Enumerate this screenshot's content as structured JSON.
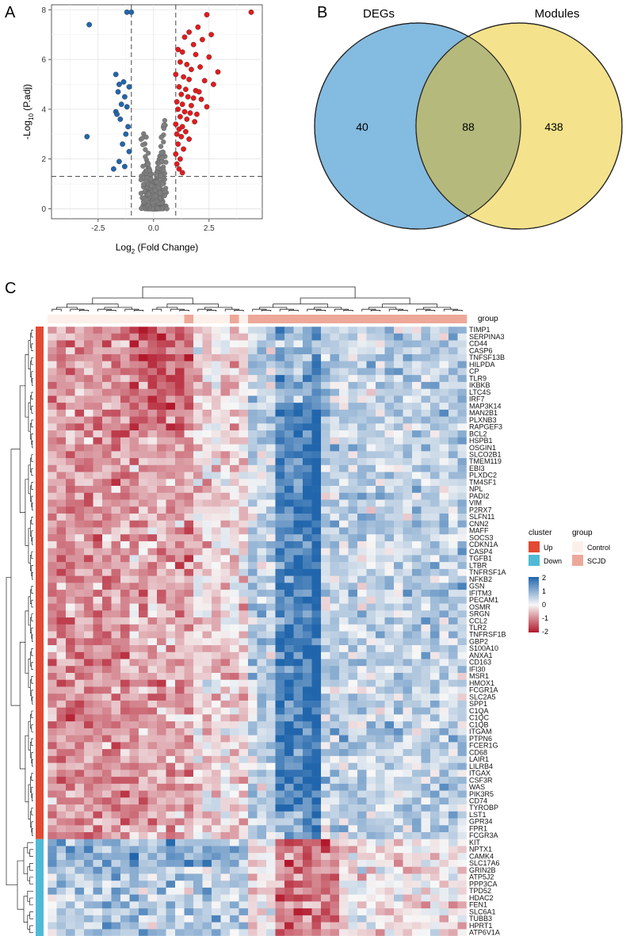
{
  "panel_labels": {
    "a": "A",
    "b": "B",
    "c": "C"
  },
  "chart_data": [
    {
      "type": "scatter",
      "title": "",
      "xlabel_main": "Log",
      "xlabel_sub": "2",
      "xlabel_rest": " (Fold Change)",
      "ylabel_main": "-Log",
      "ylabel_sub": "10",
      "ylabel_rest": " (P.adj)",
      "xlim": [
        -4.6,
        4.9
      ],
      "ylim": [
        -0.4,
        8.2
      ],
      "xticks": [
        -2.5,
        0.0,
        2.5
      ],
      "xtick_labels": [
        "-2.5",
        "0.0",
        "2.5"
      ],
      "yticks": [
        0,
        2,
        4,
        6,
        8
      ],
      "ytick_labels": [
        "0",
        "2",
        "4",
        "6",
        "8"
      ],
      "fc_cutoffs": [
        -1,
        1
      ],
      "p_cutoff": 1.3,
      "series": [
        {
          "name": "Down",
          "color": "#2166ac",
          "x": [
            -2.9,
            -1.2,
            -1.0,
            -3.0,
            -1.7,
            -1.35,
            -1.55,
            -1.1,
            -1.6,
            -1.3,
            -1.45,
            -1.2,
            -1.7,
            -1.5,
            -1.15,
            -1.65,
            -1.25,
            -1.4,
            -1.1,
            -1.55,
            -1.3,
            -1.8
          ],
          "y": [
            7.4,
            7.9,
            7.9,
            2.9,
            5.4,
            5.1,
            5.0,
            4.9,
            4.7,
            4.5,
            4.2,
            4.1,
            3.9,
            3.6,
            3.3,
            3.8,
            3.0,
            2.6,
            2.3,
            1.9,
            1.7,
            1.6
          ]
        },
        {
          "name": "Up",
          "color": "#e41a1c",
          "x": [
            4.4,
            2.4,
            2.0,
            1.6,
            2.6,
            1.4,
            2.2,
            1.8,
            1.1,
            1.3,
            1.9,
            2.5,
            1.2,
            1.5,
            2.1,
            1.7,
            2.9,
            1.0,
            1.35,
            1.6,
            2.3,
            2.7,
            1.15,
            1.45,
            1.9,
            2.05,
            1.25,
            1.55,
            1.8,
            2.15,
            1.05,
            1.3,
            1.7,
            2.4,
            1.1,
            1.4,
            1.65,
            1.95,
            1.2,
            1.5,
            1.85,
            1.0,
            1.3,
            1.15,
            1.45,
            1.05,
            1.25,
            1.6,
            1.1,
            1.35,
            1.0,
            1.2,
            1.05,
            1.15,
            1.3
          ],
          "y": [
            7.9,
            7.8,
            7.3,
            7.1,
            7.0,
            6.9,
            6.8,
            6.6,
            6.4,
            6.3,
            6.2,
            6.1,
            5.9,
            5.8,
            5.7,
            5.6,
            5.5,
            5.4,
            5.3,
            5.2,
            5.15,
            5.0,
            4.9,
            4.8,
            4.75,
            4.7,
            4.6,
            4.5,
            4.45,
            4.4,
            4.3,
            4.2,
            4.15,
            4.1,
            4.0,
            3.9,
            3.85,
            3.8,
            3.7,
            3.6,
            3.5,
            3.4,
            3.3,
            3.2,
            3.1,
            3.0,
            2.9,
            2.8,
            2.6,
            2.4,
            2.2,
            2.0,
            1.8,
            1.6,
            1.45
          ]
        }
      ]
    },
    {
      "type": "venn",
      "sets": [
        "DEGs",
        "Modules"
      ],
      "colors": [
        "#84bbe0",
        "#f5e28c",
        "#b5b97c"
      ],
      "regions": {
        "DEGs_only": "40",
        "both": "88",
        "Modules_only": "438"
      }
    },
    {
      "type": "heatmap",
      "annotation_track_label": "group",
      "genes": [
        "TIMP1",
        "SERPINA3",
        "CD44",
        "CASP6",
        "TNFSF13B",
        "HILPDA",
        "CP",
        "TLR9",
        "IKBKB",
        "LTC4S",
        "IRF7",
        "MAP3K14",
        "MAN2B1",
        "PLXNB3",
        "RAPGEF3",
        "BCL2",
        "HSPB1",
        "OSGIN1",
        "SLCO2B1",
        "TMEM119",
        "EBI3",
        "PLXDC2",
        "TM4SF1",
        "NPL",
        "PADI2",
        "VIM",
        "P2RX7",
        "SLFN11",
        "CNN2",
        "MAFF",
        "SOCS3",
        "CDKN1A",
        "CASP4",
        "TGFB1",
        "LTBR",
        "TNFRSF1A",
        "NFKB2",
        "GSN",
        "IFITM3",
        "PECAM1",
        "OSMR",
        "SRGN",
        "CCL2",
        "TLR2",
        "TNFRSF1B",
        "GBP2",
        "S100A10",
        "ANXA1",
        "CD163",
        "IFI30",
        "MSR1",
        "HMOX1",
        "FCGR1A",
        "SLC2A5",
        "SPP1",
        "C1QA",
        "C1QC",
        "C1QB",
        "ITGAM",
        "PTPN6",
        "FCER1G",
        "CD68",
        "LAIR1",
        "LILRB4",
        "ITGAX",
        "CSF3R",
        "WAS",
        "PIK3R5",
        "CD74",
        "TYROBP",
        "LST1",
        "GPR34",
        "FPR1",
        "FCGR3A",
        "KIT",
        "NPTX1",
        "CAMK4",
        "SLC17A6",
        "GRIN2B",
        "ATP5J2",
        "PPP3CA",
        "TPD52",
        "HDAC2",
        "FEN1",
        "SLC6A1",
        "TUBB3",
        "HPRT1",
        "ATP6V1A"
      ],
      "n_up": 74,
      "n_samples": 46,
      "cluster_legend": {
        "title": "cluster",
        "items": [
          {
            "label": "Up",
            "color": "#e34a33"
          },
          {
            "label": "Down",
            "color": "#4fbad6"
          }
        ]
      },
      "group_legend": {
        "title": "group",
        "items": [
          {
            "label": "Control",
            "color": "#fdf0ea"
          },
          {
            "label": "SCJD",
            "color": "#eda89a"
          }
        ]
      },
      "scale": {
        "min": -2,
        "max": 2,
        "ticks": [
          "2",
          "1",
          "0",
          "-1",
          "-2"
        ],
        "colors": [
          "#2166ac",
          "#f7f7f7",
          "#b2182b"
        ]
      }
    }
  ]
}
